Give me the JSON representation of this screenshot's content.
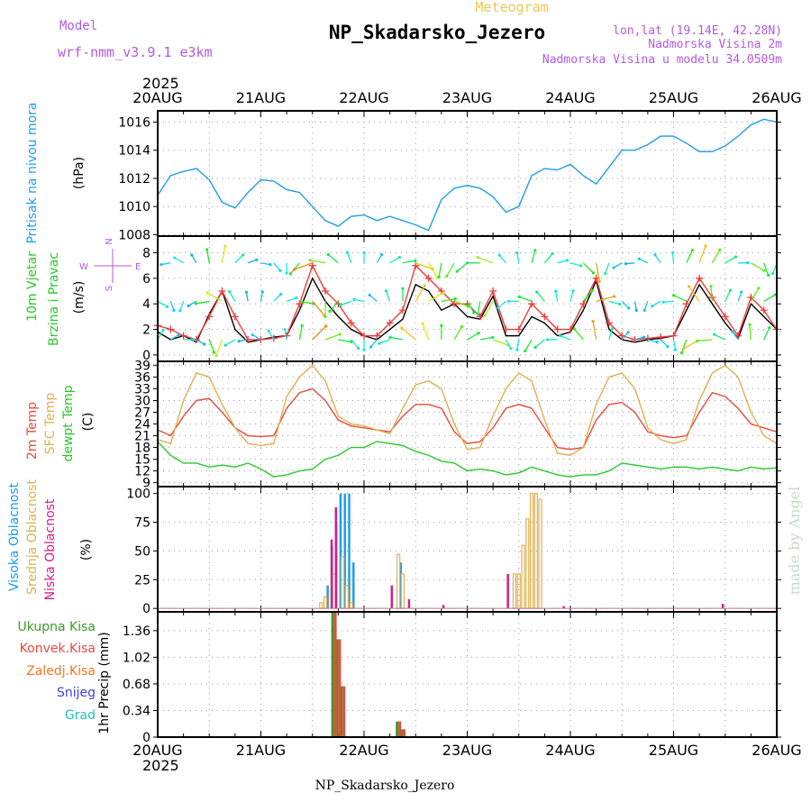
{
  "header": {
    "meteogram_label": "Meteogram",
    "title": "NP_Skadarsko_Jezero",
    "model_label": "Model",
    "model_name": "wrf-nmm_v3.9.1 e3km",
    "lonlat": "lon,lat (19.14E, 42.28N)",
    "altitude": "Nadmorska Visina 2m",
    "model_altitude": "Nadmorska Visina u modelu 34.0509m",
    "year_top": "2025",
    "year_bottom": "2025",
    "footer_station": "NP_Skadarsko_Jezero",
    "watermark": "made by Angel"
  },
  "colors": {
    "pressure": "#1e9ee8",
    "wind_speed": "#000000",
    "wind_gust": "#f03c3c",
    "temp2m": "#e84a3c",
    "sfc_temp": "#e0b050",
    "dewpt": "#28c828",
    "high_cloud": "#1e9ee8",
    "mid_cloud": "#e0b050",
    "low_cloud": "#d0208a",
    "total_precip": "#3c9a28",
    "conv_precip": "#e84a3c",
    "frozen_precip": "#f07820",
    "snow": "#4040e0",
    "grad": "#20c0c0",
    "grid": "#9a9a9a",
    "model_text": "#b25ae0",
    "meteo_label": "#e8c850",
    "info_text": "#b25ae0",
    "wm": "#c8d8c8"
  },
  "x_axis": {
    "labels": [
      "20AUG",
      "21AUG",
      "22AUG",
      "23AUG",
      "24AUG",
      "25AUG",
      "26AUG"
    ],
    "range_hours": [
      0,
      144
    ]
  },
  "chart_data": [
    {
      "type": "line",
      "id": "pressure",
      "ylabel_main": "Pritisak na nivou mora",
      "ylabel_unit": "(hPa)",
      "ylim": [
        1007.9,
        1016.8
      ],
      "yticks": [
        1008,
        1010,
        1012,
        1014,
        1016
      ],
      "series": [
        {
          "name": "Pritisak na nivou mora",
          "x": [
            0,
            3,
            6,
            9,
            12,
            15,
            18,
            21,
            24,
            27,
            30,
            33,
            36,
            39,
            42,
            45,
            48,
            51,
            54,
            57,
            60,
            63,
            66,
            69,
            72,
            75,
            78,
            81,
            84,
            87,
            90,
            93,
            96,
            99,
            102,
            105,
            108,
            111,
            114,
            117,
            120,
            123,
            126,
            129,
            132,
            135,
            138,
            141,
            144
          ],
          "values": [
            1010.8,
            1012.2,
            1012.5,
            1012.7,
            1011.9,
            1010.3,
            1009.9,
            1011.0,
            1011.9,
            1011.8,
            1011.2,
            1011.0,
            1010.0,
            1009.0,
            1008.6,
            1009.3,
            1009.4,
            1009.0,
            1009.3,
            1009.0,
            1008.7,
            1008.3,
            1010.5,
            1011.3,
            1011.5,
            1011.3,
            1010.7,
            1009.6,
            1010.0,
            1012.2,
            1012.7,
            1012.6,
            1013.0,
            1012.2,
            1011.6,
            1012.8,
            1014.0,
            1014.0,
            1014.4,
            1015.0,
            1015.0,
            1014.5,
            1013.9,
            1013.9,
            1014.3,
            1015.0,
            1015.8,
            1016.2,
            1016.0
          ]
        }
      ]
    },
    {
      "type": "line",
      "id": "wind",
      "ylabel_main": "10m Vjetar",
      "ylabel_sub": "Brzina i Pravac",
      "ylabel_unit": "(m/s)",
      "compass_text": "N  W <-|-> E  S",
      "compass_n": "N",
      "compass_w": "W",
      "compass_e": "E",
      "compass_s": "S",
      "ylim": [
        -0.5,
        9.3
      ],
      "yticks": [
        0,
        2,
        4,
        6,
        8
      ],
      "series": [
        {
          "name": "speed",
          "x": [
            0,
            3,
            6,
            9,
            12,
            15,
            18,
            21,
            24,
            27,
            30,
            33,
            36,
            39,
            42,
            45,
            48,
            51,
            54,
            57,
            60,
            63,
            66,
            69,
            72,
            75,
            78,
            81,
            84,
            87,
            90,
            93,
            96,
            99,
            102,
            105,
            108,
            111,
            114,
            117,
            120,
            123,
            126,
            129,
            132,
            135,
            138,
            141,
            144
          ],
          "values": [
            1.8,
            1.2,
            1.5,
            1.0,
            3.2,
            5.0,
            2.0,
            1.0,
            1.2,
            1.4,
            1.5,
            3.5,
            6.0,
            4.2,
            3.0,
            2.0,
            1.5,
            1.2,
            2.0,
            2.8,
            5.5,
            5.0,
            3.5,
            4.0,
            3.0,
            2.8,
            4.6,
            1.5,
            1.5,
            3.0,
            2.5,
            1.5,
            1.8,
            3.5,
            5.8,
            2.0,
            1.2,
            1.0,
            1.2,
            1.3,
            1.5,
            3.5,
            5.5,
            4.0,
            2.5,
            1.3,
            4.0,
            3.0,
            2.0
          ]
        },
        {
          "name": "gust",
          "x": [
            0,
            3,
            6,
            9,
            12,
            15,
            18,
            21,
            24,
            27,
            30,
            33,
            36,
            39,
            42,
            45,
            48,
            51,
            54,
            57,
            60,
            63,
            66,
            69,
            72,
            75,
            78,
            81,
            84,
            87,
            90,
            93,
            96,
            99,
            102,
            105,
            108,
            111,
            114,
            117,
            120,
            123,
            126,
            129,
            132,
            135,
            138,
            141,
            144
          ],
          "values": [
            2.3,
            2.0,
            1.5,
            1.2,
            3.0,
            5.0,
            3.0,
            1.2,
            1.2,
            1.3,
            1.5,
            4.0,
            7.0,
            5.0,
            4.0,
            2.5,
            1.5,
            1.5,
            2.5,
            3.5,
            7.0,
            6.0,
            5.0,
            4.0,
            4.0,
            3.0,
            5.0,
            2.0,
            2.0,
            4.0,
            3.0,
            2.0,
            2.0,
            4.0,
            6.0,
            2.5,
            1.5,
            1.2,
            1.3,
            1.4,
            1.5,
            4.0,
            6.0,
            4.5,
            3.0,
            1.5,
            4.5,
            3.5,
            2.0
          ]
        }
      ],
      "arrow_rows": [
        1.2,
        4.2,
        7.2
      ],
      "arrow_dirs_deg": [
        20,
        30,
        60,
        90,
        120,
        160,
        200,
        240,
        260,
        300,
        330,
        350,
        10,
        45,
        70,
        100,
        140,
        180,
        220,
        250,
        280,
        310,
        340,
        0,
        30,
        60,
        80,
        110,
        150,
        190,
        210,
        230,
        270,
        290,
        320,
        350,
        15,
        40,
        75,
        105,
        135,
        170,
        200,
        240,
        265,
        295,
        325,
        355,
        25
      ],
      "arrow_hue_speed": [
        1.8,
        1.2,
        1.5,
        1.0,
        3.2,
        5.0,
        2.0,
        1.0,
        1.2,
        1.4,
        1.5,
        3.5,
        6.0,
        4.2,
        3.0,
        2.0,
        1.5,
        1.2,
        2.0,
        2.8,
        5.5,
        5.0,
        3.5,
        4.0,
        3.0,
        2.8,
        4.6,
        1.5,
        1.5,
        3.0,
        2.5,
        1.5,
        1.8,
        3.5,
        5.8,
        2.0,
        1.2,
        1.0,
        1.2,
        1.3,
        1.5,
        3.5,
        5.5,
        4.0,
        2.5,
        1.3,
        4.0,
        3.0,
        2.0
      ]
    },
    {
      "type": "line",
      "id": "temperature",
      "ylabel_a": "2m Temp",
      "ylabel_b": "SFC Temp",
      "ylabel_c": "dewpt Temp",
      "ylabel_unit": "(C)",
      "ylim": [
        8,
        40
      ],
      "yticks": [
        9,
        12,
        15,
        18,
        21,
        24,
        27,
        30,
        33,
        36,
        39
      ],
      "series": [
        {
          "name": "2m Temp",
          "x": [
            0,
            3,
            6,
            9,
            12,
            15,
            18,
            21,
            24,
            27,
            30,
            33,
            36,
            39,
            42,
            45,
            48,
            51,
            54,
            57,
            60,
            63,
            66,
            69,
            72,
            75,
            78,
            81,
            84,
            87,
            90,
            93,
            96,
            99,
            102,
            105,
            108,
            111,
            114,
            117,
            120,
            123,
            126,
            129,
            132,
            135,
            138,
            141,
            144
          ],
          "values": [
            22.5,
            21,
            26,
            30,
            30.5,
            27,
            23,
            21,
            20.8,
            21,
            28,
            32,
            33,
            30,
            25,
            23.5,
            23,
            22.5,
            22,
            26,
            29,
            29,
            28,
            22,
            19,
            19.5,
            23,
            28,
            29,
            28,
            23,
            18,
            17.5,
            18,
            25,
            29,
            29.5,
            27,
            22,
            21,
            20.5,
            21,
            27,
            32,
            31,
            28,
            24,
            23,
            22
          ]
        },
        {
          "name": "SFC Temp",
          "x": [
            0,
            3,
            6,
            9,
            12,
            15,
            18,
            21,
            24,
            27,
            30,
            33,
            36,
            39,
            42,
            45,
            48,
            51,
            54,
            57,
            60,
            63,
            66,
            69,
            72,
            75,
            78,
            81,
            84,
            87,
            90,
            93,
            96,
            99,
            102,
            105,
            108,
            111,
            114,
            117,
            120,
            123,
            126,
            129,
            132,
            135,
            138,
            141,
            144
          ],
          "values": [
            20,
            19,
            30,
            37,
            36,
            29,
            23,
            19,
            18.5,
            19,
            31,
            36,
            39,
            35,
            26,
            24,
            23.5,
            22.5,
            21.5,
            28,
            34,
            35,
            33,
            24,
            17.5,
            18,
            26,
            33,
            37,
            35,
            25,
            16.5,
            16,
            18,
            29,
            36,
            37,
            33,
            23,
            20,
            19,
            20,
            30,
            37,
            39,
            36,
            27,
            21,
            19
          ]
        },
        {
          "name": "dewpt Temp",
          "x": [
            0,
            3,
            6,
            9,
            12,
            15,
            18,
            21,
            24,
            27,
            30,
            33,
            36,
            39,
            42,
            45,
            48,
            51,
            54,
            57,
            60,
            63,
            66,
            69,
            72,
            75,
            78,
            81,
            84,
            87,
            90,
            93,
            96,
            99,
            102,
            105,
            108,
            111,
            114,
            117,
            120,
            123,
            126,
            129,
            132,
            135,
            138,
            141,
            144
          ],
          "values": [
            19.5,
            16,
            14,
            14,
            13,
            13.5,
            13,
            14,
            12.5,
            10.5,
            11,
            12,
            12.5,
            15,
            16,
            18,
            18,
            19.5,
            19,
            18.5,
            17,
            16,
            14.5,
            14,
            12,
            12.5,
            12,
            11,
            11.5,
            13,
            12,
            11,
            10.5,
            11,
            11,
            12,
            14,
            13.5,
            13,
            12.5,
            13,
            13,
            12.5,
            13,
            12.5,
            12,
            13,
            12.5,
            12.8
          ]
        }
      ]
    },
    {
      "type": "bar",
      "id": "clouds",
      "ylabel_a": "Visoka Oblacnost",
      "ylabel_b": "Srednja Oblacnost",
      "ylabel_c": "Niska Oblacnost",
      "ylabel_unit": "(%)",
      "ylim": [
        -3,
        106
      ],
      "yticks": [
        0,
        25,
        50,
        75,
        100
      ],
      "series": [
        {
          "name": "Visoka Oblacnost",
          "x": [
            40,
            41,
            42,
            43,
            44,
            45,
            46,
            55,
            56,
            57
          ],
          "values": [
            20,
            55,
            75,
            100,
            100,
            100,
            40,
            0,
            0,
            40
          ]
        },
        {
          "name": "Srednja Oblacnost",
          "x": [
            38,
            39,
            41,
            43,
            44,
            45,
            56,
            57,
            83,
            84,
            85,
            86,
            87,
            88,
            89
          ],
          "values": [
            5,
            10,
            30,
            45,
            20,
            5,
            47,
            30,
            30,
            30,
            55,
            78,
            100,
            100,
            95
          ]
        },
        {
          "name": "Niska Oblacnost",
          "x": [
            40,
            41,
            54,
            58,
            66,
            81,
            94,
            131
          ],
          "values": [
            60,
            88,
            20,
            8,
            3,
            30,
            2,
            4
          ]
        }
      ]
    },
    {
      "type": "bar",
      "id": "precip",
      "ylabel_a": "Ukupna Kisa",
      "ylabel_b": "Konvek.Kisa",
      "ylabel_c": "Zaledj.Kisa",
      "ylabel_d": "Snijeg",
      "ylabel_e": "Grad",
      "ylabel_unit": "1hr Precip (mm)",
      "ylim": [
        0,
        1.6
      ],
      "yticks": [
        0,
        0.34,
        0.68,
        1.02,
        1.36
      ],
      "ytick_labels": [
        "0",
        "0.34",
        "0.68",
        "1.02",
        "1.36"
      ],
      "series": [
        {
          "name": "Ukupna Kisa",
          "x": [
            41,
            42,
            43,
            56,
            57
          ],
          "values": [
            1.6,
            1.25,
            0.65,
            0.2,
            0.1
          ]
        },
        {
          "name": "Konvek.Kisa",
          "x": [
            41,
            42,
            43,
            56,
            57
          ],
          "values": [
            1.6,
            1.25,
            0.65,
            0.2,
            0.1
          ]
        }
      ]
    }
  ]
}
